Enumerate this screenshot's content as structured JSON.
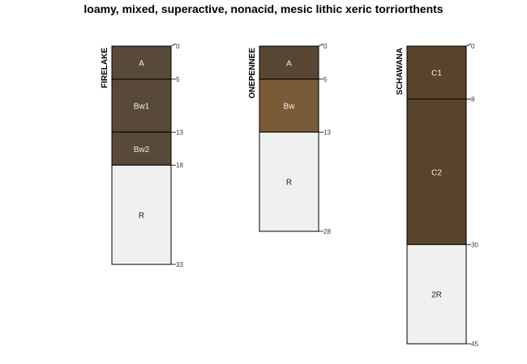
{
  "title": "loamy, mixed, superactive, nonacid, mesic lithic xeric torriorthents",
  "chart_data": {
    "type": "soil-profile",
    "max_depth": 45,
    "profiles": [
      {
        "name": "FIRELAKE",
        "horizons": [
          {
            "name": "A",
            "top": 0,
            "bottom": 5,
            "color": "#58493a"
          },
          {
            "name": "Bw1",
            "top": 5,
            "bottom": 13,
            "color": "#58493a"
          },
          {
            "name": "Bw2",
            "top": 13,
            "bottom": 18,
            "color": "#58493a"
          },
          {
            "name": "R",
            "top": 18,
            "bottom": 33,
            "color": "#f0f0f0"
          }
        ]
      },
      {
        "name": "ONEPENNEE",
        "horizons": [
          {
            "name": "A",
            "top": 0,
            "bottom": 5,
            "color": "#594632"
          },
          {
            "name": "Bw",
            "top": 5,
            "bottom": 13,
            "color": "#7a5b37"
          },
          {
            "name": "R",
            "top": 13,
            "bottom": 28,
            "color": "#f0f0f0"
          }
        ]
      },
      {
        "name": "SCHAWANA",
        "horizons": [
          {
            "name": "C1",
            "top": 0,
            "bottom": 8,
            "color": "#58432d"
          },
          {
            "name": "C2",
            "top": 8,
            "bottom": 30,
            "color": "#58432d"
          },
          {
            "name": "2R",
            "top": 30,
            "bottom": 45,
            "color": "#f0f0f0"
          }
        ]
      }
    ]
  }
}
